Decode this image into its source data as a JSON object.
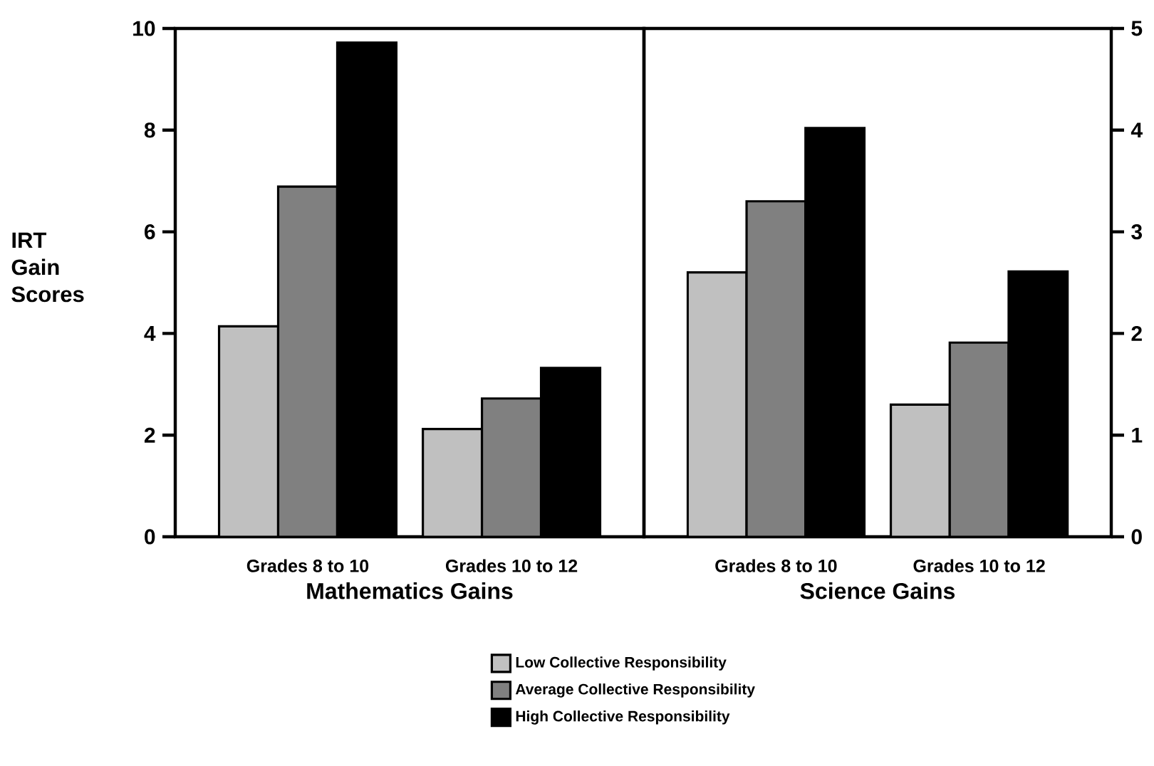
{
  "chart_data": [
    {
      "type": "bar",
      "categories": [
        "Grades 8 to 10",
        "Grades 10 to 12"
      ],
      "xlabel": "Mathematics Gains",
      "ylabel": "IRT Gain Scores",
      "ylim": [
        0,
        10
      ],
      "yticks": [
        0,
        2,
        4,
        6,
        8,
        10
      ],
      "legend": "bottom",
      "series": [
        {
          "name": "Low Collective Responsibility",
          "color": "#c0c0c0",
          "values": [
            4.14,
            2.12
          ]
        },
        {
          "name": "Average Collective Responsibility",
          "color": "#808080",
          "values": [
            6.89,
            2.72
          ]
        },
        {
          "name": "High Collective Responsibility",
          "color": "#000000",
          "values": [
            9.72,
            3.32
          ]
        }
      ]
    },
    {
      "type": "bar",
      "categories": [
        "Grades 8 to 10",
        "Grades 10 to 12"
      ],
      "xlabel": "Science Gains",
      "ylim": [
        0,
        5
      ],
      "yticks": [
        0,
        1,
        2,
        3,
        4,
        5
      ],
      "series": [
        {
          "color": "#c0c0c0",
          "values": [
            2.6,
            1.3
          ]
        },
        {
          "color": "#808080",
          "values": [
            3.3,
            1.91
          ]
        },
        {
          "color": "#000000",
          "values": [
            4.02,
            2.61
          ]
        }
      ]
    }
  ]
}
